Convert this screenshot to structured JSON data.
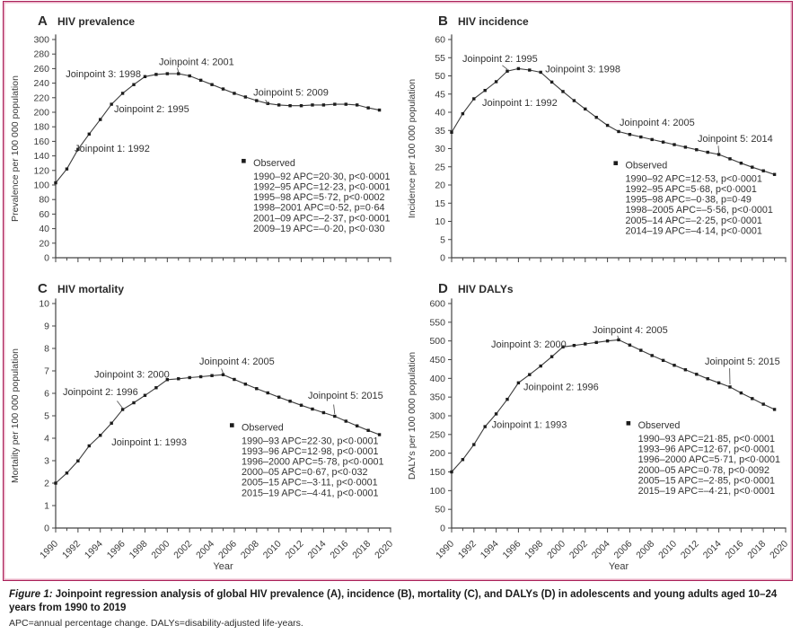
{
  "caption": {
    "label": "Figure 1:",
    "title": "Joinpoint regression analysis of global HIV prevalence (A), incidence (B), mortality (C), and DALYs (D) in adolescents and young adults aged 10–24 years from 1990 to 2019",
    "note": "APC=annual percentage change. DALYs=disability-adjusted life-years."
  },
  "colors": {
    "border_outer": "#a9215a",
    "border_inner": "#eaaec4",
    "line": "#3d3d3d",
    "marker": "#1c1c1c",
    "text": "#3a3a3a"
  },
  "chart_data": [
    {
      "panel": "A",
      "title": "HIV prevalence",
      "type": "line",
      "ylabel": "Prevalence per 100 000 population",
      "xlabel": "",
      "xlim": [
        1990,
        2020
      ],
      "ylim": [
        0,
        300
      ],
      "ytick_step": 20,
      "xtick_label_step": 2,
      "show_xtick_labels": false,
      "x_start": 1990,
      "observed": [
        103,
        122,
        149,
        170,
        190,
        211,
        226,
        238,
        249,
        252,
        253,
        253,
        250,
        244,
        238,
        232,
        226,
        221,
        216,
        212,
        210,
        209,
        209,
        210,
        210,
        211,
        211,
        210,
        206,
        203
      ],
      "legend": {
        "label": "Observed",
        "pos": [
          0.59,
          0.58
        ],
        "lines": [
          "1990–92 APC=20·30, p<0·0001",
          "1992–95 APC=12·23, p<0·0001",
          "1995–98 APC=5·72, p<0·0002",
          "1998–2001 APC=0·52, p=0·64",
          "2001–09 APC=–2·37, p<0·0001",
          "2009–19 APC=–0·20, p<0·030"
        ]
      },
      "annotations": [
        {
          "text": "Joinpoint 1: 1992",
          "at": [
            1991.7,
            145.7
          ]
        },
        {
          "text": "Joinpoint 2: 1995",
          "at": [
            1995.23,
            200
          ]
        },
        {
          "text": "Joinpoint 3: 1998",
          "at": [
            1990.9,
            248
          ]
        },
        {
          "text": "Joinpoint 4: 2001",
          "at": [
            1999.25,
            265
          ],
          "leader": [
            [
              2000.9,
              261
            ],
            [
              2001,
              255
            ]
          ]
        },
        {
          "text": "Joinpoint 5: 2009",
          "at": [
            2007.7,
            223
          ],
          "leader": [
            [
              2008.8,
              217
            ],
            [
              2009,
              211
            ]
          ]
        }
      ]
    },
    {
      "panel": "B",
      "title": "HIV incidence",
      "type": "line",
      "ylabel": "Incidence per 100 000 population",
      "xlabel": "",
      "xlim": [
        1990,
        2020
      ],
      "ylim": [
        0,
        60
      ],
      "ytick_step": 5,
      "xtick_label_step": 2,
      "show_xtick_labels": false,
      "x_start": 1990,
      "observed": [
        34.5,
        39.6,
        43.7,
        46.0,
        48.4,
        51.3,
        52.0,
        51.6,
        51.0,
        48.3,
        45.7,
        43.2,
        40.9,
        38.6,
        36.4,
        34.7,
        33.9,
        33.2,
        32.5,
        31.8,
        31.1,
        30.4,
        29.7,
        29.0,
        28.4,
        27.2,
        26.0,
        24.9,
        23.9,
        22.9
      ],
      "legend": {
        "label": "Observed",
        "pos": [
          0.52,
          0.59
        ],
        "lines": [
          "1990–92 APC=12·53, p<0·0001",
          "1992–95 APC=5·68, p<0·0001",
          "1995–98 APC=–0·38, p=0·49",
          "1998–2005 APC=–5·56, p<0·0001",
          "2005–14 APC=–2·25, p<0·0001",
          "2014–19 APC=–4·14, p<0·0001"
        ]
      },
      "annotations": [
        {
          "text": "Joinpoint 1: 1992",
          "at": [
            1992.74,
            41.7
          ]
        },
        {
          "text": "Joinpoint 2: 1995",
          "at": [
            1990.97,
            53.8
          ],
          "leader": [
            [
              1994.55,
              52.9
            ],
            [
              1995,
              51.8
            ]
          ]
        },
        {
          "text": "Joinpoint 3: 1998",
          "at": [
            1998.4,
            51.0
          ]
        },
        {
          "text": "Joinpoint 4: 2005",
          "at": [
            2005.08,
            36.3
          ]
        },
        {
          "text": "Joinpoint 5: 2014",
          "at": [
            2012.1,
            31.9
          ],
          "leader": [
            [
              2013.95,
              30.8
            ],
            [
              2014,
              28.9
            ]
          ]
        }
      ]
    },
    {
      "panel": "C",
      "title": "HIV mortality",
      "type": "line",
      "ylabel": "Mortality per 100 000 population",
      "xlabel": "Year",
      "xlim": [
        1990,
        2020
      ],
      "ylim": [
        0,
        10
      ],
      "ytick_step": 1,
      "xtick_label_step": 2,
      "show_xtick_labels": true,
      "x_start": 1990,
      "observed": [
        2.0,
        2.45,
        2.99,
        3.66,
        4.13,
        4.67,
        5.28,
        5.58,
        5.91,
        6.25,
        6.61,
        6.65,
        6.7,
        6.74,
        6.79,
        6.83,
        6.62,
        6.41,
        6.21,
        6.02,
        5.83,
        5.65,
        5.47,
        5.3,
        5.14,
        4.98,
        4.76,
        4.55,
        4.35,
        4.16
      ],
      "legend": {
        "label": "Observed",
        "pos": [
          0.555,
          0.565
        ],
        "lines": [
          "1990–93 APC=22·30, p<0·0001",
          "1993–96 APC=12·98, p<0·0001",
          "1996–2000 APC=5·78, p<0·0001",
          "2000–05 APC=0·67, p<0·032",
          "2005–15 APC=–3·11, p<0·0001",
          "2015–19 APC=–4·41, p<0·0001"
        ]
      },
      "annotations": [
        {
          "text": "Joinpoint 1: 1993",
          "at": [
            1995.0,
            3.68
          ]
        },
        {
          "text": "Joinpoint 2: 1996",
          "at": [
            1990.64,
            5.92
          ],
          "leader": [
            [
              1995.5,
              5.66
            ],
            [
              1996,
              5.34
            ]
          ]
        },
        {
          "text": "Joinpoint 3: 2000",
          "at": [
            1993.46,
            6.7
          ]
        },
        {
          "text": "Joinpoint 4: 2005",
          "at": [
            2002.87,
            7.28
          ],
          "leader": [
            [
              2004.85,
              7.1
            ],
            [
              2005,
              6.9
            ]
          ]
        },
        {
          "text": "Joinpoint 5: 2015",
          "at": [
            2012.6,
            5.76
          ],
          "leader": [
            [
              2014.9,
              5.5
            ],
            [
              2015,
              5.08
            ]
          ]
        }
      ]
    },
    {
      "panel": "D",
      "title": "HIV DALYs",
      "type": "line",
      "ylabel": "DALYs per 100 000 population",
      "xlabel": "Year",
      "xlim": [
        1990,
        2020
      ],
      "ylim": [
        0,
        600
      ],
      "ytick_step": 50,
      "xtick_label_step": 2,
      "show_xtick_labels": true,
      "x_start": 1990,
      "observed": [
        150,
        183,
        223,
        271,
        305,
        344,
        388,
        410,
        433,
        458,
        484,
        488,
        492,
        496,
        500,
        503,
        489,
        475,
        461,
        448,
        435,
        423,
        411,
        399,
        388,
        377,
        361,
        346,
        331,
        317
      ],
      "legend": {
        "label": "Observed",
        "pos": [
          0.558,
          0.556
        ],
        "lines": [
          "1990–93 APC=21·85, p<0·0001",
          "1993–96 APC=12·67, p<0·0001",
          "1996–2000 APC=5·71, p<0·0001",
          "2000–05 APC=0·78, p<0·0092",
          "2005–15 APC=–2·85, p<0·0001",
          "2015–19 APC=–4·21, p<0·0001"
        ]
      },
      "annotations": [
        {
          "text": "Joinpoint 1: 1993",
          "at": [
            1993.6,
            268
          ]
        },
        {
          "text": "Joinpoint 2: 1996",
          "at": [
            1996.45,
            368
          ]
        },
        {
          "text": "Joinpoint 3: 2000",
          "at": [
            1993.55,
            482
          ]
        },
        {
          "text": "Joinpoint 4: 2005",
          "at": [
            2002.66,
            521
          ],
          "leader": [
            [
              2004.9,
              514
            ],
            [
              2005,
              505
            ]
          ]
        },
        {
          "text": "Joinpoint 5: 2015",
          "at": [
            2012.74,
            437
          ],
          "leader": [
            [
              2014.97,
              427
            ],
            [
              2015,
              384
            ]
          ]
        }
      ]
    }
  ]
}
